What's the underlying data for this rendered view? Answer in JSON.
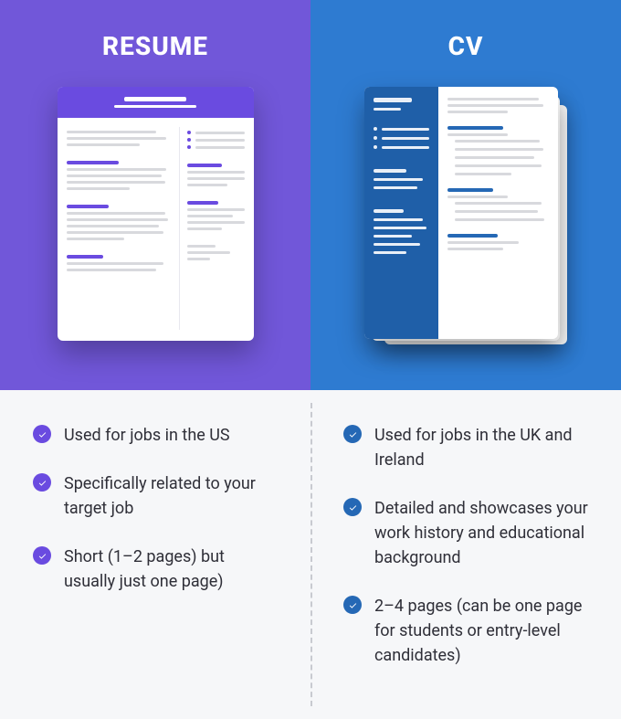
{
  "colors": {
    "resume_bg": "#7157d9",
    "resume_accent": "#6a4be0",
    "cv_bg": "#2e7bd1",
    "cv_accent": "#2568b5",
    "cv_side": "#1f5fa8",
    "body_gray": "#d8d9dd",
    "text": "#2f2f38",
    "page_bg": "#f6f7f9",
    "divider": "#c8cad0",
    "white": "#ffffff"
  },
  "resume": {
    "title": "RESUME",
    "bullets": [
      "Used for jobs in the US",
      "Specifically related to your target job",
      "Short (1–2 pages) but usually just one page)"
    ]
  },
  "cv": {
    "title": "CV",
    "bullets": [
      "Used for jobs in the UK and Ireland",
      "Detailed and showcases your work history and educational background",
      "2–4 pages (can be one page for students or entry-level candidates)"
    ]
  }
}
